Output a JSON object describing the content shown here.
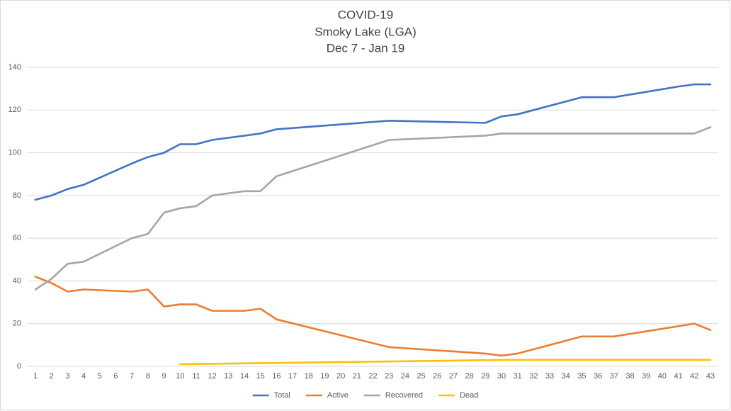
{
  "chart_data": {
    "type": "line",
    "title": "COVID-19",
    "subtitle": "Smoky Lake (LGA)",
    "date_range": "Dec 7 - Jan 19",
    "xlim": [
      0.5,
      43.5
    ],
    "xticks": [
      1,
      2,
      3,
      4,
      5,
      6,
      7,
      8,
      9,
      10,
      11,
      12,
      13,
      14,
      15,
      16,
      17,
      18,
      19,
      20,
      21,
      22,
      23,
      24,
      25,
      26,
      27,
      28,
      29,
      30,
      31,
      32,
      33,
      34,
      35,
      36,
      37,
      38,
      39,
      40,
      41,
      42,
      43
    ],
    "ylim": [
      0,
      140
    ],
    "yticks": [
      0,
      20,
      40,
      60,
      80,
      100,
      120,
      140
    ],
    "grid": true,
    "legend": "bottom",
    "series": [
      {
        "name": "Total",
        "color": "#4472c4",
        "x": [
          1,
          2,
          3,
          4,
          7,
          8,
          9,
          10,
          11,
          12,
          15,
          16,
          23,
          29,
          30,
          31,
          35,
          37,
          41,
          42,
          43
        ],
        "values": [
          78,
          80,
          83,
          85,
          95,
          98,
          100,
          104,
          104,
          106,
          109,
          111,
          115,
          114,
          117,
          118,
          126,
          126,
          131,
          132,
          132
        ]
      },
      {
        "name": "Active",
        "color": "#ed7d31",
        "x": [
          1,
          2,
          3,
          4,
          7,
          8,
          9,
          10,
          11,
          12,
          14,
          15,
          16,
          23,
          29,
          30,
          31,
          35,
          37,
          42,
          43
        ],
        "values": [
          42,
          39,
          35,
          36,
          35,
          36,
          28,
          29,
          29,
          26,
          26,
          27,
          22,
          9,
          6,
          5,
          6,
          14,
          14,
          20,
          17
        ]
      },
      {
        "name": "Recovered",
        "color": "#a5a5a5",
        "x": [
          1,
          2,
          3,
          4,
          7,
          8,
          9,
          10,
          11,
          12,
          14,
          15,
          16,
          23,
          29,
          30,
          31,
          42,
          43
        ],
        "values": [
          36,
          41,
          48,
          49,
          60,
          62,
          72,
          74,
          75,
          80,
          82,
          82,
          89,
          106,
          108,
          109,
          109,
          109,
          112
        ]
      },
      {
        "name": "Dead",
        "color": "#ffc000",
        "x": [
          10,
          30,
          43
        ],
        "values": [
          1,
          3,
          3
        ]
      }
    ]
  }
}
